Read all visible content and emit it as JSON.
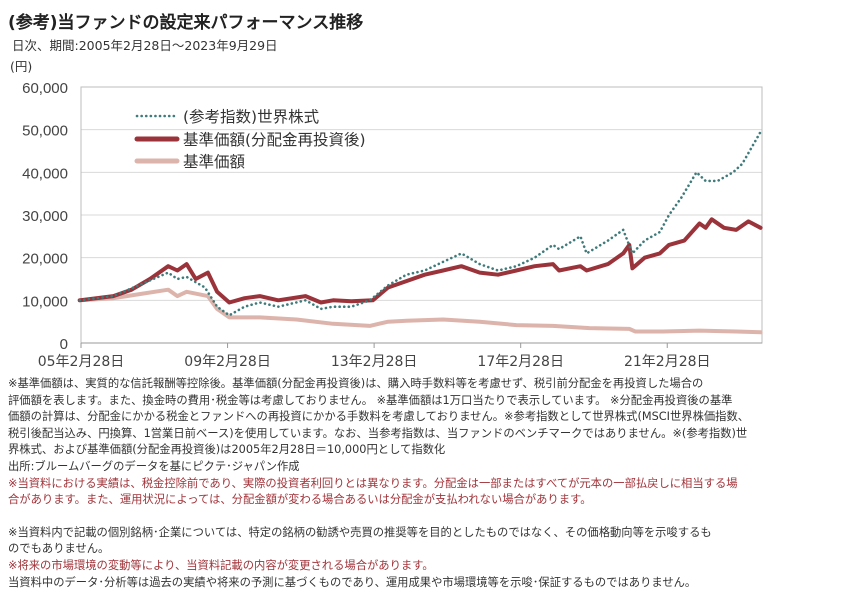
{
  "title": "(参考)当ファンドの設定来パフォーマンス推移",
  "subtitle": "日次、期間:2005年2月28日～2023年9月29日",
  "unit": "(円)",
  "chart_data": {
    "type": "line",
    "ylim": [
      0,
      60000
    ],
    "xlim": [
      "2005-02-28",
      "2023-09-29"
    ],
    "yticks": [
      0,
      10000,
      20000,
      30000,
      40000,
      50000,
      60000
    ],
    "ytick_labels": [
      "0",
      "10,000",
      "20,000",
      "30,000",
      "40,000",
      "50,000",
      "60,000"
    ],
    "xticks": [
      "2005-02-28",
      "2009-02-28",
      "2013-02-28",
      "2017-02-28",
      "2021-02-28"
    ],
    "xtick_labels": [
      "05年2月28日",
      "09年2月28日",
      "13年2月28日",
      "17年2月28日",
      "21年2月28日"
    ],
    "grid": true,
    "legend_placement": "top-left",
    "series": [
      {
        "name": "(参考指数)世界株式",
        "color": "#3f7b7b",
        "style": "dotted",
        "points": [
          [
            "2005-02",
            10000
          ],
          [
            "2006-01",
            11000
          ],
          [
            "2007-07",
            16500
          ],
          [
            "2007-10",
            15000
          ],
          [
            "2008-01",
            15500
          ],
          [
            "2008-07",
            13000
          ],
          [
            "2008-11",
            8500
          ],
          [
            "2009-03",
            6500
          ],
          [
            "2009-08",
            8500
          ],
          [
            "2010-01",
            9500
          ],
          [
            "2010-07",
            8500
          ],
          [
            "2011-04",
            10000
          ],
          [
            "2011-09",
            8000
          ],
          [
            "2012-01",
            8500
          ],
          [
            "2012-07",
            8500
          ],
          [
            "2013-01",
            10000
          ],
          [
            "2013-07",
            13500
          ],
          [
            "2014-01",
            16000
          ],
          [
            "2014-07",
            17000
          ],
          [
            "2015-01",
            19000
          ],
          [
            "2015-07",
            21000
          ],
          [
            "2016-01",
            18500
          ],
          [
            "2016-07",
            17000
          ],
          [
            "2017-01",
            18000
          ],
          [
            "2017-07",
            20000
          ],
          [
            "2018-01",
            23000
          ],
          [
            "2018-03",
            22000
          ],
          [
            "2018-10",
            25000
          ],
          [
            "2018-12",
            21000
          ],
          [
            "2019-07",
            24000
          ],
          [
            "2019-12",
            26500
          ],
          [
            "2020-03",
            21000
          ],
          [
            "2020-07",
            24000
          ],
          [
            "2020-12",
            26000
          ],
          [
            "2021-03",
            30000
          ],
          [
            "2021-07",
            34000
          ],
          [
            "2021-12",
            40000
          ],
          [
            "2022-03",
            38000
          ],
          [
            "2022-07",
            38000
          ],
          [
            "2022-12",
            40000
          ],
          [
            "2023-03",
            42000
          ],
          [
            "2023-07",
            47000
          ],
          [
            "2023-09",
            49500
          ]
        ]
      },
      {
        "name": "基準価額(分配金再投資後)",
        "color": "#9b333a",
        "style": "solid-thick",
        "points": [
          [
            "2005-02",
            10000
          ],
          [
            "2006-01",
            11000
          ],
          [
            "2006-07",
            12500
          ],
          [
            "2007-01",
            15000
          ],
          [
            "2007-07",
            18000
          ],
          [
            "2007-10",
            17000
          ],
          [
            "2008-01",
            18500
          ],
          [
            "2008-04",
            15000
          ],
          [
            "2008-08",
            16500
          ],
          [
            "2008-11",
            12000
          ],
          [
            "2009-03",
            9500
          ],
          [
            "2009-08",
            10500
          ],
          [
            "2010-01",
            11000
          ],
          [
            "2010-07",
            10000
          ],
          [
            "2011-04",
            11000
          ],
          [
            "2011-09",
            9500
          ],
          [
            "2012-01",
            10000
          ],
          [
            "2012-07",
            9800
          ],
          [
            "2013-02",
            10000
          ],
          [
            "2013-07",
            13000
          ],
          [
            "2014-01",
            14500
          ],
          [
            "2014-07",
            16000
          ],
          [
            "2015-01",
            17000
          ],
          [
            "2015-07",
            18000
          ],
          [
            "2016-01",
            16500
          ],
          [
            "2016-07",
            16000
          ],
          [
            "2017-01",
            17000
          ],
          [
            "2017-07",
            18000
          ],
          [
            "2018-01",
            18500
          ],
          [
            "2018-03",
            17000
          ],
          [
            "2018-10",
            18000
          ],
          [
            "2018-12",
            17000
          ],
          [
            "2019-07",
            18500
          ],
          [
            "2019-12",
            21000
          ],
          [
            "2020-02",
            23000
          ],
          [
            "2020-03",
            17500
          ],
          [
            "2020-07",
            20000
          ],
          [
            "2020-12",
            21000
          ],
          [
            "2021-03",
            23000
          ],
          [
            "2021-08",
            24000
          ],
          [
            "2022-01",
            28000
          ],
          [
            "2022-03",
            27000
          ],
          [
            "2022-05",
            29000
          ],
          [
            "2022-09",
            27000
          ],
          [
            "2023-01",
            26500
          ],
          [
            "2023-05",
            28500
          ],
          [
            "2023-09",
            27000
          ]
        ]
      },
      {
        "name": "基準価額",
        "color": "#ddb4ab",
        "style": "solid-thick",
        "points": [
          [
            "2005-02",
            10000
          ],
          [
            "2006-01",
            10500
          ],
          [
            "2007-07",
            12500
          ],
          [
            "2007-10",
            11000
          ],
          [
            "2008-01",
            12000
          ],
          [
            "2008-08",
            11000
          ],
          [
            "2008-11",
            8000
          ],
          [
            "2009-03",
            6000
          ],
          [
            "2010-01",
            6000
          ],
          [
            "2011-01",
            5500
          ],
          [
            "2012-01",
            4500
          ],
          [
            "2013-01",
            4000
          ],
          [
            "2013-07",
            5000
          ],
          [
            "2014-01",
            5200
          ],
          [
            "2015-01",
            5500
          ],
          [
            "2016-01",
            5000
          ],
          [
            "2017-01",
            4200
          ],
          [
            "2018-01",
            4000
          ],
          [
            "2019-01",
            3500
          ],
          [
            "2020-02",
            3300
          ],
          [
            "2020-04",
            2700
          ],
          [
            "2021-01",
            2700
          ],
          [
            "2022-01",
            2900
          ],
          [
            "2023-01",
            2700
          ],
          [
            "2023-09",
            2500
          ]
        ]
      }
    ]
  },
  "notes": [
    {
      "text": "※基準価額は、実質的な信託報酬等控除後。基準価額(分配金再投資後)は、購入時手数料等を考慮せず、税引前分配金を再投資した場合の",
      "red": false
    },
    {
      "text": "評価額を表します。また、換金時の費用･税金等は考慮しておりません。 ※基準価額は1万口当たりで表示しています。 ※分配金再投資後の基準",
      "red": false
    },
    {
      "text": "価額の計算は、分配金にかかる税金とファンドへの再投資にかかる手数料を考慮しておりません。※参考指数として世界株式(MSCI世界株価指数、",
      "red": false
    },
    {
      "text": "税引後配当込み、円換算、1営業日前ベース)を使用しています。なお、当参考指数は、当ファンドのベンチマークではありません。※(参考指数)世",
      "red": false
    },
    {
      "text": "界株式、および基準価額(分配金再投資後)は2005年2月28日＝10,000円として指数化",
      "red": false
    },
    {
      "text": "出所:ブルームバーグのデータを基にピクテ･ジャパン作成",
      "red": false
    },
    {
      "text": "※当資料における実績は、税金控除前であり、実際の投資者利回りとは異なります。分配金は一部またはすべてが元本の一部払戻しに相当する場",
      "red": true
    },
    {
      "text": "合があります。また、運用状況によっては、分配金額が変わる場合あるいは分配金が支払われない場合があります。",
      "red": true
    },
    {
      "text": "",
      "red": false
    },
    {
      "text": "※当資料内で記載の個別銘柄･企業については、特定の銘柄の勧誘や売買の推奨等を目的としたものではなく、その価格動向等を示唆するも",
      "red": false
    },
    {
      "text": "のでもありません。",
      "red": false
    },
    {
      "text": "※将来の市場環境の変動等により、当資料記載の内容が変更される場合があります。",
      "red": true
    },
    {
      "text": "当資料中のデータ･分析等は過去の実績や将来の予測に基づくものであり、運用成果や市場環境等を示唆･保証するものではありません。",
      "red": false
    }
  ]
}
